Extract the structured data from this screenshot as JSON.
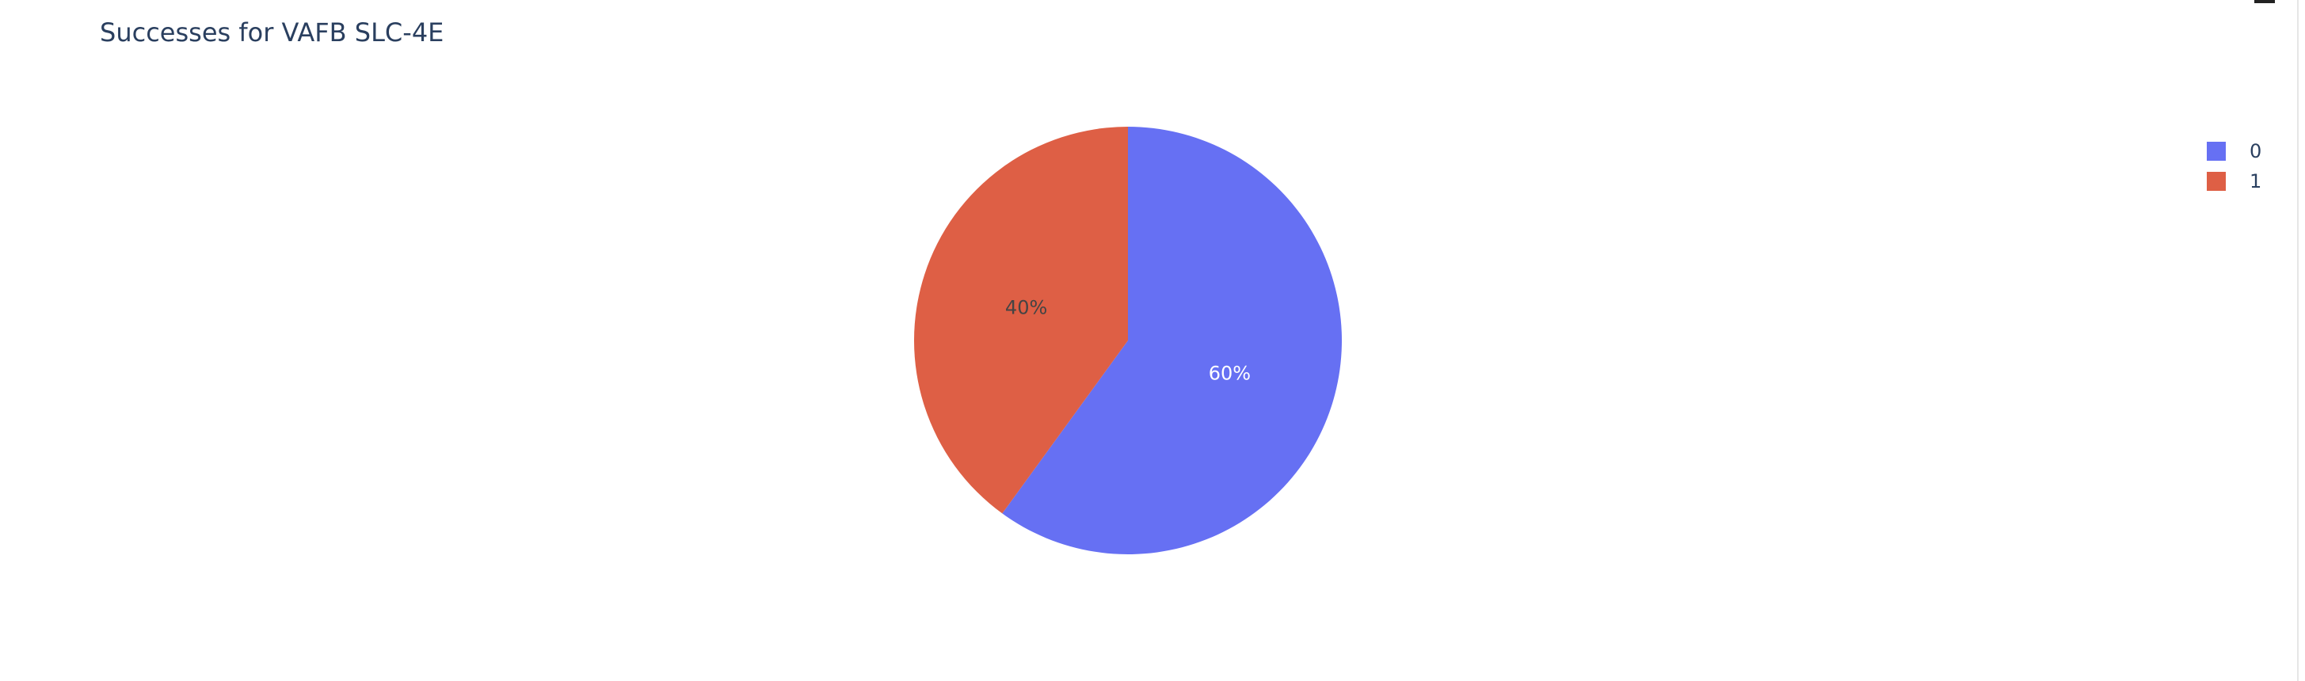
{
  "chart_data": {
    "type": "pie",
    "title": "Successes for VAFB SLC-4E",
    "labels": [
      "0",
      "1"
    ],
    "values": [
      60,
      40
    ],
    "text_labels": [
      "60%",
      "40%"
    ],
    "colors": [
      "#636efa",
      "#ef553b"
    ],
    "slice_colors_rendered": [
      "#6670f3",
      "#de5f45"
    ],
    "label_colors": [
      "#ffffff",
      "#444444"
    ],
    "legend_position": "top-right",
    "sort_direction": "clockwise",
    "start_angle_deg": 90
  }
}
